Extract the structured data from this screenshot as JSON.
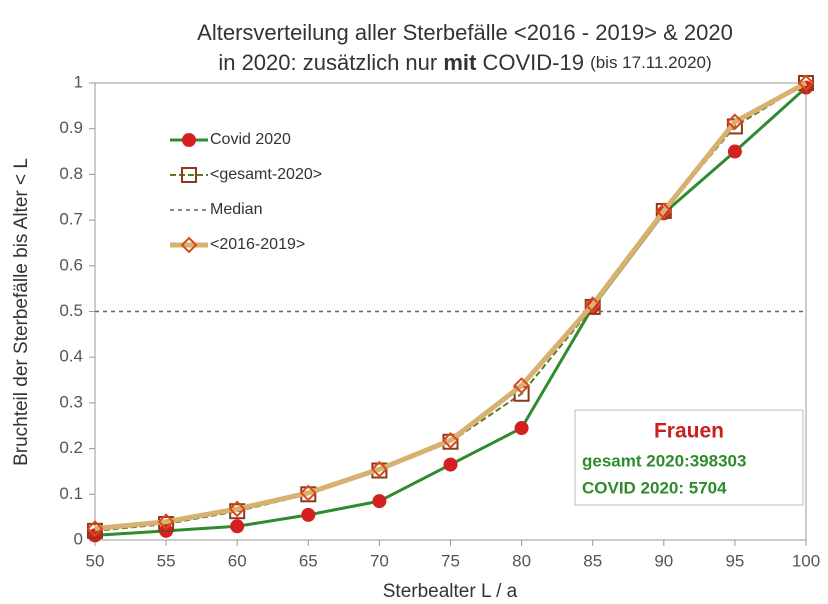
{
  "chart_data": {
    "type": "line",
    "title": [
      "Altersverteilung aller Sterbefälle <2016 - 2019> & 2020",
      [
        "in 2020: zusätzlich nur ",
        "mit",
        " COVID-19 ",
        "(bis 17.11.2020)"
      ]
    ],
    "x_label": "Sterbealter  L / a",
    "y_label": "Bruchteil der Sterbefälle bis Alter  < L",
    "x": [
      50,
      55,
      60,
      65,
      70,
      75,
      80,
      85,
      90,
      95,
      100
    ],
    "series": [
      {
        "name": "Covid 2020",
        "color": "#2e8b2e",
        "marker": "circle",
        "marker_color": "#d42020",
        "dash": "none",
        "width": 3,
        "values": [
          0.01,
          0.02,
          0.03,
          0.055,
          0.085,
          0.165,
          0.245,
          0.51,
          0.715,
          0.85,
          0.99
        ]
      },
      {
        "name": "<gesamt-2020>",
        "color": "#5a7a2a",
        "marker": "square",
        "marker_color": "#8b3a1a",
        "dash": "6 3",
        "width": 2,
        "values": [
          0.02,
          0.035,
          0.063,
          0.1,
          0.152,
          0.215,
          0.32,
          0.51,
          0.72,
          0.905,
          1.0
        ]
      },
      {
        "name": "Median",
        "color": "#666666",
        "marker": "none",
        "marker_color": "#666666",
        "dash": "4 4",
        "width": 1.5,
        "values": [
          0.5,
          0.5,
          0.5,
          0.5,
          0.5,
          0.5,
          0.5,
          0.5,
          0.5,
          0.5,
          0.5
        ]
      },
      {
        "name": "<2016-2019>",
        "color": "#d8b070",
        "marker": "diamond",
        "marker_color": "#d84a1a",
        "dash": "none",
        "width": 5,
        "values": [
          0.025,
          0.04,
          0.068,
          0.103,
          0.155,
          0.218,
          0.338,
          0.515,
          0.72,
          0.915,
          1.0
        ]
      }
    ],
    "xlim": [
      50,
      100
    ],
    "xticks": [
      50,
      55,
      60,
      65,
      70,
      75,
      80,
      85,
      90,
      95,
      100
    ],
    "ylim": [
      0,
      1
    ],
    "yticks": [
      0,
      0.1,
      0.2,
      0.3,
      0.4,
      0.5,
      0.6,
      0.7,
      0.8,
      0.9,
      1
    ],
    "grid": false,
    "legend": "upper left",
    "annotation": [
      "Frauen",
      "gesamt 2020:398303",
      "COVID 2020: 5704"
    ]
  }
}
